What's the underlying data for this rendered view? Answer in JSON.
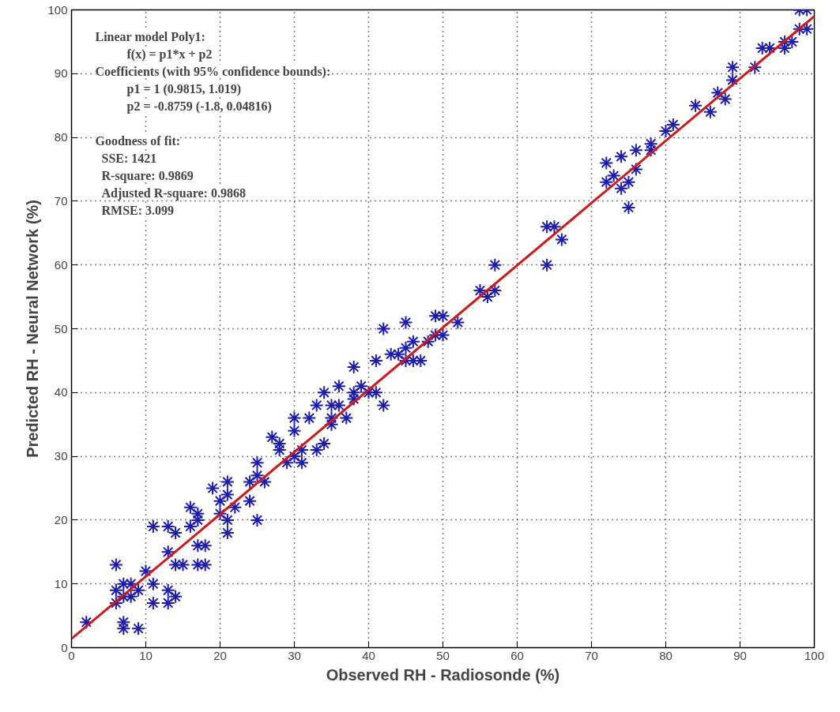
{
  "chart_data": {
    "type": "scatter",
    "xlabel": "Observed RH - Radiosonde (%)",
    "ylabel": "Predicted RH - Neural Network (%)",
    "xlim": [
      0,
      100
    ],
    "ylim": [
      0,
      100
    ],
    "xticks": [
      0,
      10,
      20,
      30,
      40,
      50,
      60,
      70,
      80,
      90,
      100
    ],
    "yticks": [
      0,
      10,
      20,
      30,
      40,
      50,
      60,
      70,
      80,
      90,
      100
    ],
    "grid": true,
    "annotations": [
      "Linear model Poly1:",
      "f(x) = p1*x + p2",
      "Coefficients (with 95% confidence bounds):",
      "p1 =     1  (0.9815, 1.019)",
      "p2 =     -0.8759  (-1.8, 0.04816)",
      "Goodness of fit:",
      "SSE: 1421",
      "R-square: 0.9869",
      "Adjusted R-square: 0.9868",
      "RMSE: 3.099"
    ],
    "series": [
      {
        "marker": "cross",
        "color": "#1c1cb4",
        "x": [
          2,
          6,
          6,
          6,
          7,
          7,
          7,
          7,
          8,
          8,
          9,
          9,
          10,
          11,
          11,
          11,
          13,
          13,
          13,
          13,
          14,
          14,
          14,
          15,
          16,
          16,
          17,
          17,
          17,
          17,
          18,
          18,
          19,
          20,
          20,
          21,
          21,
          21,
          21,
          22,
          24,
          24,
          25,
          25,
          25,
          26,
          27,
          28,
          28,
          29,
          30,
          30,
          30,
          31,
          31,
          32,
          33,
          33,
          34,
          34,
          35,
          35,
          35,
          36,
          36,
          37,
          38,
          38,
          38,
          39,
          40,
          41,
          41,
          42,
          42,
          43,
          44,
          45,
          45,
          45,
          46,
          46,
          47,
          48,
          49,
          49,
          50,
          50,
          52,
          55,
          56,
          57,
          57,
          64,
          64,
          65,
          66,
          72,
          72,
          73,
          74,
          74,
          75,
          75,
          76,
          76,
          78,
          78,
          80,
          81,
          84,
          86,
          87,
          88,
          89,
          89,
          92,
          93,
          94,
          96,
          96,
          97,
          98,
          99,
          99,
          98
        ],
        "values": [
          4,
          13,
          9,
          7,
          10,
          8,
          4,
          3,
          10,
          8,
          9,
          3,
          12,
          19,
          10,
          7,
          19,
          15,
          9,
          7,
          18,
          13,
          8,
          13,
          22,
          19,
          21,
          20,
          16,
          13,
          16,
          13,
          25,
          21,
          23,
          26,
          24,
          20,
          18,
          22,
          26,
          23,
          27,
          29,
          20,
          26,
          33,
          32,
          31,
          29,
          36,
          34,
          30,
          29,
          31,
          36,
          38,
          31,
          40,
          32,
          38,
          36,
          35,
          41,
          38,
          36,
          44,
          40,
          39,
          41,
          40,
          45,
          40,
          50,
          38,
          46,
          46,
          51,
          47,
          45,
          48,
          45,
          45,
          48,
          52,
          49,
          52,
          49,
          51,
          56,
          55,
          56,
          60,
          60,
          66,
          66,
          64,
          76,
          73,
          74,
          77,
          72,
          73,
          69,
          78,
          75,
          79,
          78,
          81,
          82,
          85,
          84,
          87,
          86,
          91,
          89,
          91,
          94,
          94,
          94,
          95,
          95,
          100,
          100,
          97,
          97
        ]
      },
      {
        "type": "line",
        "marker": "none",
        "color": "#d01818",
        "x": [
          0,
          100
        ],
        "values": [
          1.4,
          99
        ]
      }
    ]
  }
}
